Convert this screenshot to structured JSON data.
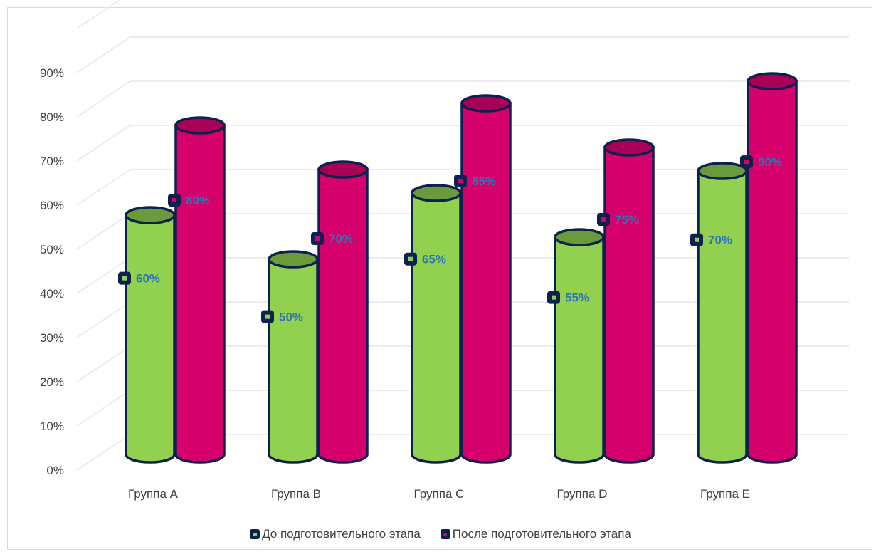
{
  "chart_data": {
    "type": "bar",
    "title": "",
    "xlabel": "",
    "ylabel": "",
    "categories": [
      "Группа A",
      "Группа B",
      "Группа C",
      "Группа D",
      "Группа E"
    ],
    "series": [
      {
        "name": "До подготовительного этапа",
        "values": [
          0.6,
          0.5,
          0.65,
          0.55,
          0.7
        ],
        "labels": [
          "60%",
          "50%",
          "65%",
          "55%",
          "70%"
        ],
        "color": "#92d050",
        "top_color": "#6b9a3a"
      },
      {
        "name": "После подготовительного этапа",
        "values": [
          0.8,
          0.7,
          0.85,
          0.75,
          0.9
        ],
        "labels": [
          "80%",
          "70%",
          "85%",
          "75%",
          "90%"
        ],
        "color": "#d6006d",
        "top_color": "#a80055"
      }
    ],
    "ylim": [
      0,
      1.0
    ],
    "yticks": [
      0,
      0.1,
      0.2,
      0.3,
      0.4,
      0.5,
      0.6,
      0.7,
      0.8,
      0.9
    ],
    "ytick_labels": [
      "0%",
      "10%",
      "20%",
      "30%",
      "40%",
      "50%",
      "60%",
      "70%",
      "80%",
      "90%"
    ],
    "grid": true,
    "legend_position": "bottom",
    "style": "3d-cylinder",
    "outline_color": "#0d2150",
    "label_color": "#2e75b6",
    "grid_color": "#e6e6e6",
    "axis_text_color": "#404040"
  }
}
